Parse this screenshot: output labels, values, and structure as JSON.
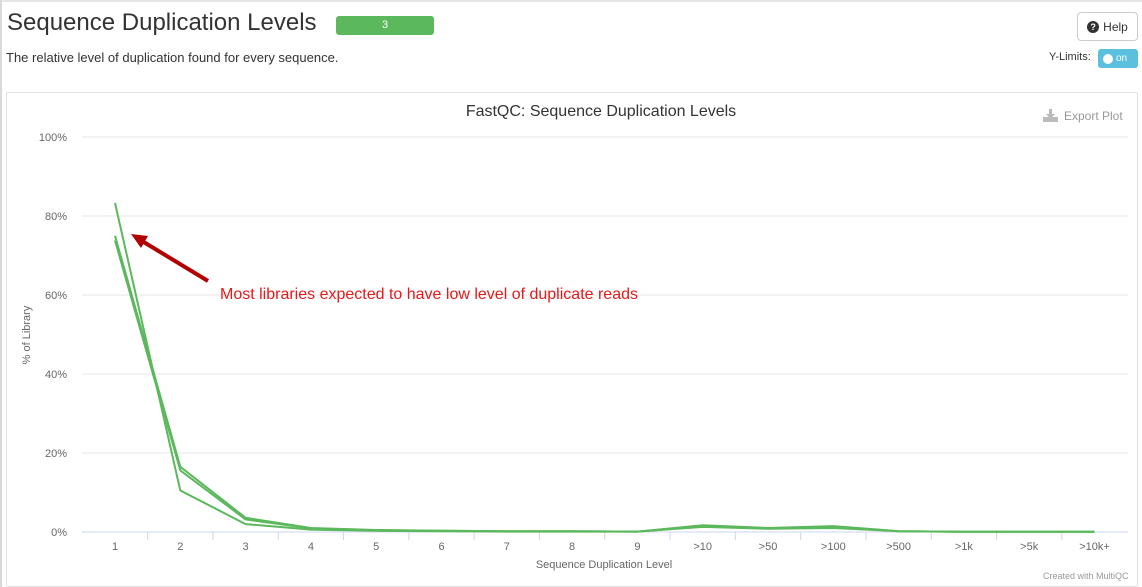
{
  "header": {
    "title": "Sequence Duplication Levels",
    "badge": "3",
    "subtitle": "The relative level of duplication found for every sequence.",
    "help_label": "Help",
    "ylimits_label": "Y-Limits:",
    "toggle_label": "on"
  },
  "plot": {
    "export_label": "Export Plot",
    "credit": "Created with MultiQC",
    "annotation": "Most libraries expected to have low level of duplicate reads",
    "annotation_color": "#e31a1c",
    "arrow_color": "#b20000",
    "line_color": "#5cb85c"
  },
  "chart_data": {
    "type": "line",
    "title": "FastQC: Sequence Duplication Levels",
    "xlabel": "Sequence Duplication Level",
    "ylabel": "% of Library",
    "categories": [
      "1",
      "2",
      "3",
      "4",
      "5",
      "6",
      "7",
      "8",
      "9",
      ">10",
      ">50",
      ">100",
      ">500",
      ">1k",
      ">5k",
      ">10k+"
    ],
    "ylim": [
      0,
      100
    ],
    "yticks": [
      0,
      20,
      40,
      60,
      80,
      100
    ],
    "yticklabels": [
      "0%",
      "20%",
      "40%",
      "60%",
      "80%",
      "100%"
    ],
    "grid": true,
    "series": [
      {
        "values": [
          83.3,
          10.5,
          2.0,
          0.6,
          0.3,
          0.2,
          0.1,
          0.1,
          0.1,
          1.3,
          0.8,
          1.0,
          0.2,
          0.05,
          0.05,
          0.05
        ]
      },
      {
        "values": [
          75.0,
          16.5,
          3.6,
          1.0,
          0.5,
          0.3,
          0.2,
          0.2,
          0.1,
          1.7,
          1.0,
          1.5,
          0.2,
          0.05,
          0.05,
          0.05
        ]
      },
      {
        "values": [
          73.8,
          15.6,
          3.2,
          0.9,
          0.4,
          0.3,
          0.2,
          0.2,
          0.1,
          1.5,
          0.9,
          1.3,
          0.2,
          0.05,
          0.05,
          0.05
        ]
      }
    ]
  }
}
